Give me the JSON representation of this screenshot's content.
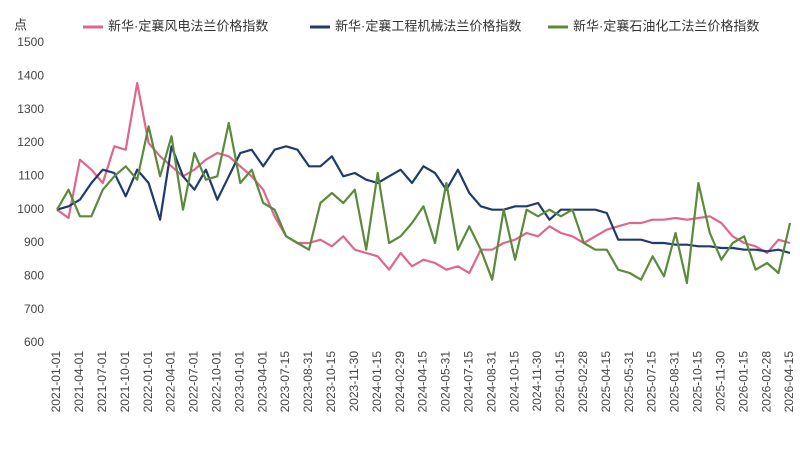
{
  "chart_data": {
    "type": "line",
    "y_axis_label": "点",
    "categories": [
      "2021-01-01",
      null,
      "2021-04-01",
      null,
      "2021-07-01",
      null,
      "2021-10-01",
      null,
      "2022-01-01",
      null,
      "2022-04-01",
      null,
      "2022-07-01",
      null,
      "2022-10-01",
      null,
      "2023-01-01",
      null,
      "2023-04-01",
      null,
      "2023-07-15",
      null,
      "2023-08-31",
      null,
      "2023-10-15",
      null,
      "2023-11-30",
      null,
      "2024-01-15",
      null,
      "2024-02-29",
      null,
      "2024-04-15",
      null,
      "2024-05-31",
      null,
      "2024-07-15",
      null,
      "2024-08-31",
      null,
      "2024-10-15",
      null,
      "2024-11-30",
      null,
      "2025-01-15",
      null,
      "2025-02-28",
      null,
      "2025-04-15",
      null,
      "2025-05-31",
      null,
      "2025-07-15",
      null,
      "2025-08-31",
      null,
      "2025-10-15",
      null,
      "2025-11-30",
      null,
      "2026-01-15",
      null,
      "2026-02-28",
      null,
      "2026-04-15"
    ],
    "series": [
      {
        "name": "新华·定襄风电法兰价格指数",
        "color": "#e0668c",
        "values": [
          1000,
          975,
          1150,
          1120,
          1080,
          1190,
          1180,
          1380,
          1200,
          1160,
          1130,
          1100,
          1120,
          1150,
          1170,
          1160,
          1130,
          1100,
          1060,
          980,
          920,
          900,
          900,
          910,
          890,
          920,
          880,
          870,
          860,
          820,
          870,
          830,
          850,
          840,
          820,
          830,
          810,
          880,
          880,
          900,
          910,
          930,
          920,
          950,
          930,
          920,
          900,
          920,
          940,
          950,
          960,
          960,
          970,
          970,
          975,
          970,
          975,
          980,
          960,
          920,
          900,
          890,
          870,
          910,
          900
        ]
      },
      {
        "name": "新华·定襄工程机械法兰价格指数",
        "color": "#1f3b6e",
        "values": [
          1000,
          1010,
          1030,
          1080,
          1120,
          1110,
          1040,
          1120,
          1080,
          970,
          1190,
          1100,
          1060,
          1120,
          1030,
          1100,
          1170,
          1180,
          1130,
          1180,
          1190,
          1180,
          1130,
          1130,
          1160,
          1100,
          1110,
          1090,
          1080,
          1100,
          1120,
          1080,
          1130,
          1110,
          1060,
          1120,
          1050,
          1010,
          1000,
          1000,
          1010,
          1010,
          1020,
          970,
          1000,
          1000,
          1000,
          1000,
          990,
          910,
          910,
          910,
          900,
          900,
          895,
          895,
          890,
          890,
          885,
          885,
          880,
          880,
          875,
          880,
          870
        ]
      },
      {
        "name": "新华·定襄石油化工法兰价格指数",
        "color": "#5b8a3c",
        "values": [
          1000,
          1060,
          980,
          980,
          1060,
          1100,
          1130,
          1090,
          1250,
          1100,
          1220,
          1000,
          1170,
          1090,
          1100,
          1260,
          1080,
          1120,
          1020,
          1000,
          920,
          900,
          880,
          1020,
          1050,
          1020,
          1060,
          880,
          1110,
          900,
          920,
          960,
          1010,
          900,
          1080,
          880,
          950,
          880,
          790,
          1000,
          850,
          1000,
          980,
          1000,
          980,
          1000,
          900,
          880,
          880,
          820,
          810,
          790,
          860,
          800,
          930,
          780,
          1080,
          930,
          850,
          900,
          920,
          820,
          840,
          810,
          960
        ]
      }
    ],
    "ylim": [
      600,
      1500
    ],
    "yticks": [
      600,
      700,
      800,
      900,
      1000,
      1100,
      1200,
      1300,
      1400,
      1500
    ],
    "grid": false,
    "legend": "top"
  }
}
